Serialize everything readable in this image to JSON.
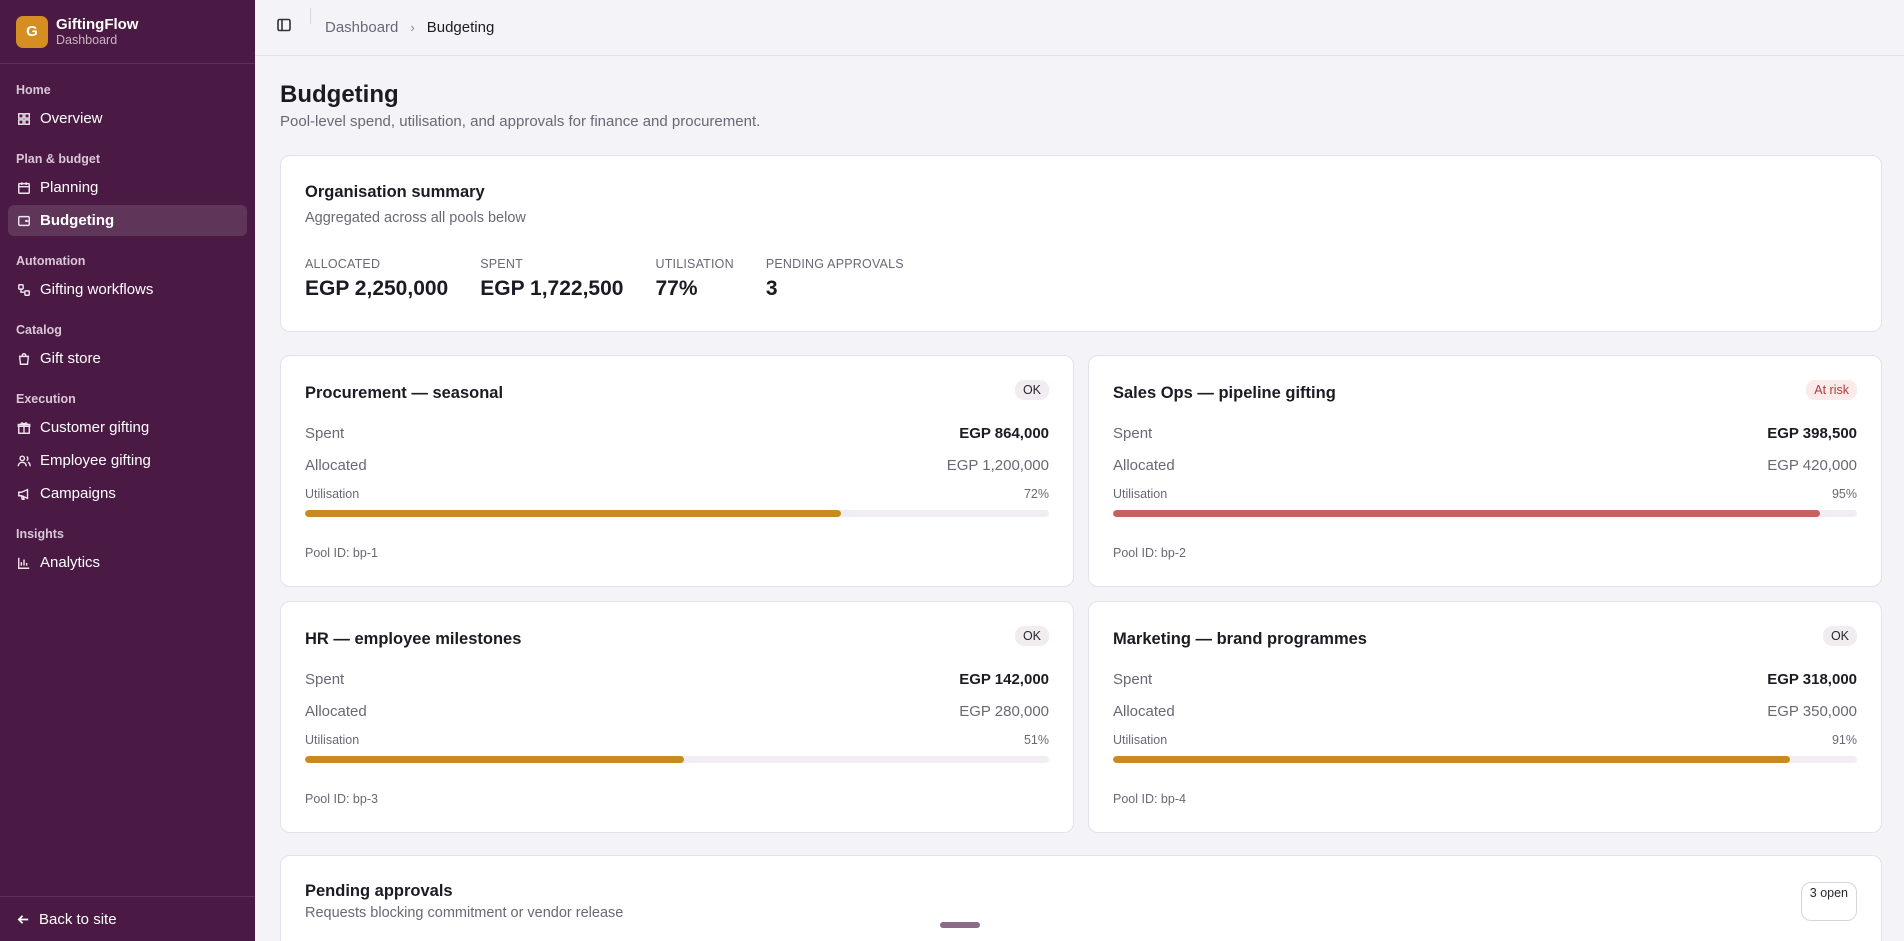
{
  "brand": {
    "initial": "G",
    "name": "GiftingFlow",
    "sub": "Dashboard"
  },
  "nav": [
    {
      "group": "Home",
      "items": [
        {
          "label": "Overview",
          "icon": "grid-icon",
          "active": false
        }
      ]
    },
    {
      "group": "Plan & budget",
      "items": [
        {
          "label": "Planning",
          "icon": "calendar-icon",
          "active": false
        },
        {
          "label": "Budgeting",
          "icon": "wallet-icon",
          "active": true
        }
      ]
    },
    {
      "group": "Automation",
      "items": [
        {
          "label": "Gifting workflows",
          "icon": "workflow-icon",
          "active": false
        }
      ]
    },
    {
      "group": "Catalog",
      "items": [
        {
          "label": "Gift store",
          "icon": "shopping-bag-icon",
          "active": false
        }
      ]
    },
    {
      "group": "Execution",
      "items": [
        {
          "label": "Customer gifting",
          "icon": "gift-icon",
          "active": false
        },
        {
          "label": "Employee gifting",
          "icon": "users-icon",
          "active": false
        },
        {
          "label": "Campaigns",
          "icon": "megaphone-icon",
          "active": false
        }
      ]
    },
    {
      "group": "Insights",
      "items": [
        {
          "label": "Analytics",
          "icon": "bar-chart-icon",
          "active": false
        }
      ]
    }
  ],
  "footer": {
    "back_label": "Back to site"
  },
  "breadcrumb": {
    "parent": "Dashboard",
    "separator": "›",
    "current": "Budgeting"
  },
  "page": {
    "title": "Budgeting",
    "subtitle": "Pool-level spend, utilisation, and approvals for finance and procurement."
  },
  "summary": {
    "title": "Organisation summary",
    "subtitle": "Aggregated across all pools below",
    "stats": [
      {
        "label": "Allocated",
        "value": "EGP 2,250,000"
      },
      {
        "label": "Spent",
        "value": "EGP 1,722,500"
      },
      {
        "label": "Utilisation",
        "value": "77%"
      },
      {
        "label": "Pending approvals",
        "value": "3"
      }
    ]
  },
  "pool_labels": {
    "spent": "Spent",
    "allocated": "Allocated",
    "utilisation": "Utilisation"
  },
  "pools": [
    {
      "name": "Procurement — seasonal",
      "status": "OK",
      "risk": false,
      "spent": "EGP 864,000",
      "allocated": "EGP 1,200,000",
      "utilisation": "72%",
      "util_value": 72,
      "bar_color": "#c98a22",
      "pool_id": "Pool ID: bp-1"
    },
    {
      "name": "Sales Ops — pipeline gifting",
      "status": "At risk",
      "risk": true,
      "spent": "EGP 398,500",
      "allocated": "EGP 420,000",
      "utilisation": "95%",
      "util_value": 95,
      "bar_color": "#c96060",
      "pool_id": "Pool ID: bp-2"
    },
    {
      "name": "HR — employee milestones",
      "status": "OK",
      "risk": false,
      "spent": "EGP 142,000",
      "allocated": "EGP 280,000",
      "utilisation": "51%",
      "util_value": 51,
      "bar_color": "#c98a22",
      "pool_id": "Pool ID: bp-3"
    },
    {
      "name": "Marketing — brand programmes",
      "status": "OK",
      "risk": false,
      "spent": "EGP 318,000",
      "allocated": "EGP 350,000",
      "utilisation": "91%",
      "util_value": 91,
      "bar_color": "#c98a22",
      "pool_id": "Pool ID: bp-4"
    }
  ],
  "approvals": {
    "title": "Pending approvals",
    "subtitle": "Requests blocking commitment or vendor release",
    "badge": "3 open"
  }
}
